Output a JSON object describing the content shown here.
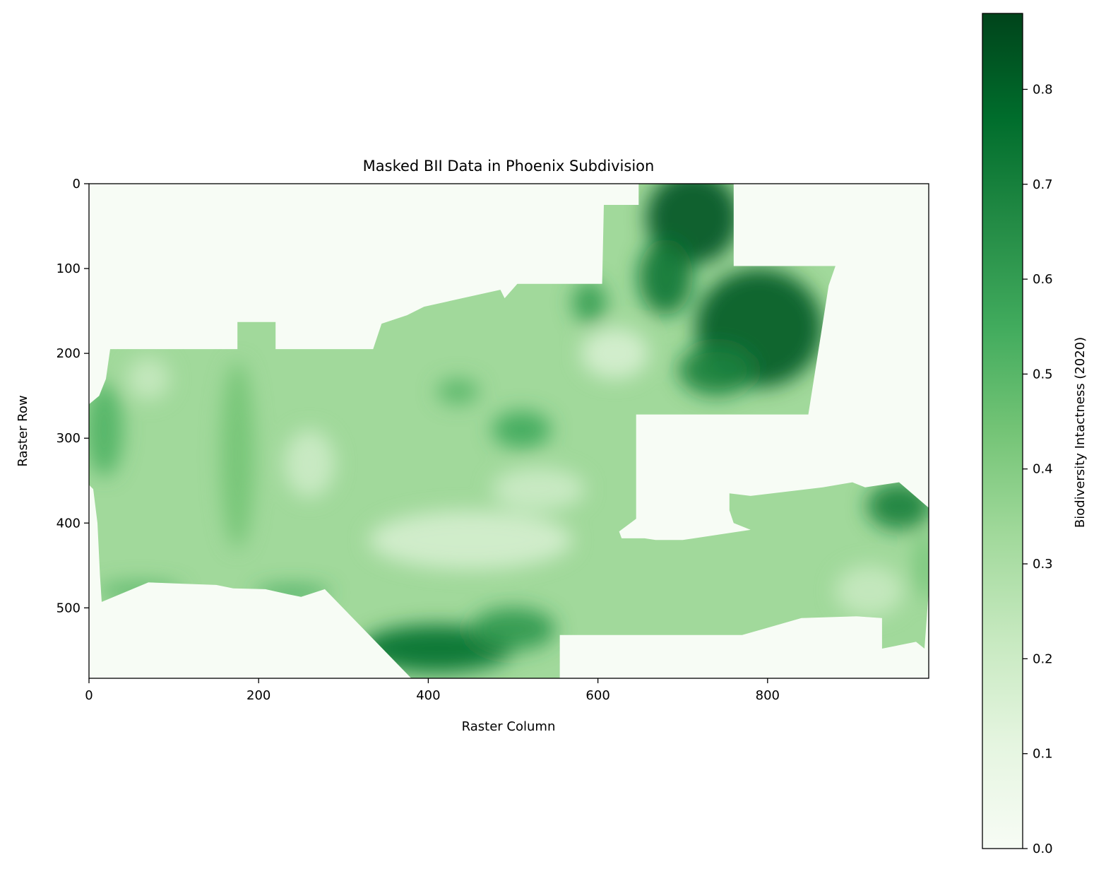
{
  "chart_data": {
    "type": "heatmap",
    "title": "Masked BII Data in Phoenix Subdivision",
    "xlabel": "Raster Column",
    "ylabel": "Raster Row",
    "xlim": [
      0,
      990
    ],
    "ylim": [
      583,
      0
    ],
    "x_ticks": [
      0,
      200,
      400,
      600,
      800
    ],
    "y_ticks": [
      0,
      100,
      200,
      300,
      400,
      500
    ],
    "colormap": "Greens",
    "colormap_stops": [
      "#f7fcf5",
      "#e5f5e0",
      "#c7e9c0",
      "#a1d99b",
      "#74c476",
      "#41ab5d",
      "#238b45",
      "#006d2c",
      "#00441b"
    ],
    "colorbar": {
      "label": "Biodiversity Intactness (2020)",
      "vmin": 0.0,
      "vmax": 0.88,
      "ticks": [
        0.0,
        0.1,
        0.2,
        0.3,
        0.4,
        0.5,
        0.6,
        0.7,
        0.8
      ],
      "tick_labels": [
        "0.0",
        "0.1",
        "0.2",
        "0.3",
        "0.4",
        "0.5",
        "0.6",
        "0.7",
        "0.8"
      ]
    },
    "background_value": 0.0,
    "region_base_value": 0.33,
    "region_polygon": [
      [
        12,
        250
      ],
      [
        20,
        230
      ],
      [
        25,
        195
      ],
      [
        175,
        195
      ],
      [
        175,
        163
      ],
      [
        220,
        163
      ],
      [
        220,
        195
      ],
      [
        335,
        195
      ],
      [
        345,
        165
      ],
      [
        375,
        155
      ],
      [
        395,
        145
      ],
      [
        485,
        125
      ],
      [
        490,
        135
      ],
      [
        505,
        118
      ],
      [
        605,
        118
      ],
      [
        607,
        25
      ],
      [
        648,
        25
      ],
      [
        648,
        0
      ],
      [
        760,
        0
      ],
      [
        760,
        97
      ],
      [
        880,
        97
      ],
      [
        872,
        120
      ],
      [
        848,
        272
      ],
      [
        645,
        272
      ],
      [
        645,
        395
      ],
      [
        625,
        410
      ],
      [
        628,
        418
      ],
      [
        655,
        418
      ],
      [
        668,
        420
      ],
      [
        700,
        420
      ],
      [
        780,
        408
      ],
      [
        760,
        400
      ],
      [
        755,
        385
      ],
      [
        755,
        365
      ],
      [
        780,
        368
      ],
      [
        865,
        358
      ],
      [
        900,
        352
      ],
      [
        915,
        358
      ],
      [
        955,
        352
      ],
      [
        990,
        382
      ],
      [
        990,
        480
      ],
      [
        985,
        548
      ],
      [
        975,
        540
      ],
      [
        935,
        548
      ],
      [
        935,
        512
      ],
      [
        905,
        510
      ],
      [
        840,
        512
      ],
      [
        770,
        532
      ],
      [
        555,
        532
      ],
      [
        555,
        583
      ],
      [
        380,
        583
      ],
      [
        278,
        478
      ],
      [
        250,
        487
      ],
      [
        235,
        484
      ],
      [
        208,
        478
      ],
      [
        170,
        477
      ],
      [
        150,
        473
      ],
      [
        70,
        470
      ],
      [
        15,
        493
      ],
      [
        13,
        462
      ],
      [
        10,
        400
      ],
      [
        5,
        360
      ],
      [
        0,
        355
      ],
      [
        0,
        260
      ]
    ],
    "high_value_patches": [
      {
        "cx": 712,
        "cy": 40,
        "rx": 55,
        "ry": 55,
        "value": 0.84
      },
      {
        "cx": 680,
        "cy": 110,
        "rx": 32,
        "ry": 45,
        "value": 0.74
      },
      {
        "cx": 790,
        "cy": 170,
        "rx": 75,
        "ry": 70,
        "value": 0.82
      },
      {
        "cx": 740,
        "cy": 220,
        "rx": 45,
        "ry": 30,
        "value": 0.7
      },
      {
        "cx": 590,
        "cy": 140,
        "rx": 20,
        "ry": 25,
        "value": 0.6
      },
      {
        "cx": 510,
        "cy": 290,
        "rx": 35,
        "ry": 22,
        "value": 0.56
      },
      {
        "cx": 435,
        "cy": 245,
        "rx": 25,
        "ry": 15,
        "value": 0.5
      },
      {
        "cx": 410,
        "cy": 548,
        "rx": 90,
        "ry": 28,
        "value": 0.76
      },
      {
        "cx": 500,
        "cy": 525,
        "rx": 50,
        "ry": 25,
        "value": 0.62
      },
      {
        "cx": 955,
        "cy": 380,
        "rx": 38,
        "ry": 28,
        "value": 0.7
      },
      {
        "cx": 18,
        "cy": 290,
        "rx": 22,
        "ry": 55,
        "value": 0.52
      },
      {
        "cx": 175,
        "cy": 320,
        "rx": 20,
        "ry": 110,
        "value": 0.44
      },
      {
        "cx": 240,
        "cy": 482,
        "rx": 45,
        "ry": 8,
        "value": 0.56
      },
      {
        "cx": 60,
        "cy": 480,
        "rx": 50,
        "ry": 10,
        "value": 0.5
      },
      {
        "cx": 985,
        "cy": 450,
        "rx": 10,
        "ry": 40,
        "value": 0.45
      }
    ],
    "low_value_patches": [
      {
        "cx": 450,
        "cy": 420,
        "rx": 120,
        "ry": 35,
        "value": 0.17
      },
      {
        "cx": 620,
        "cy": 200,
        "rx": 40,
        "ry": 30,
        "value": 0.16
      },
      {
        "cx": 260,
        "cy": 330,
        "rx": 30,
        "ry": 40,
        "value": 0.2
      },
      {
        "cx": 920,
        "cy": 480,
        "rx": 40,
        "ry": 30,
        "value": 0.22
      },
      {
        "cx": 70,
        "cy": 230,
        "rx": 25,
        "ry": 25,
        "value": 0.22
      },
      {
        "cx": 530,
        "cy": 360,
        "rx": 55,
        "ry": 25,
        "value": 0.2
      }
    ]
  }
}
